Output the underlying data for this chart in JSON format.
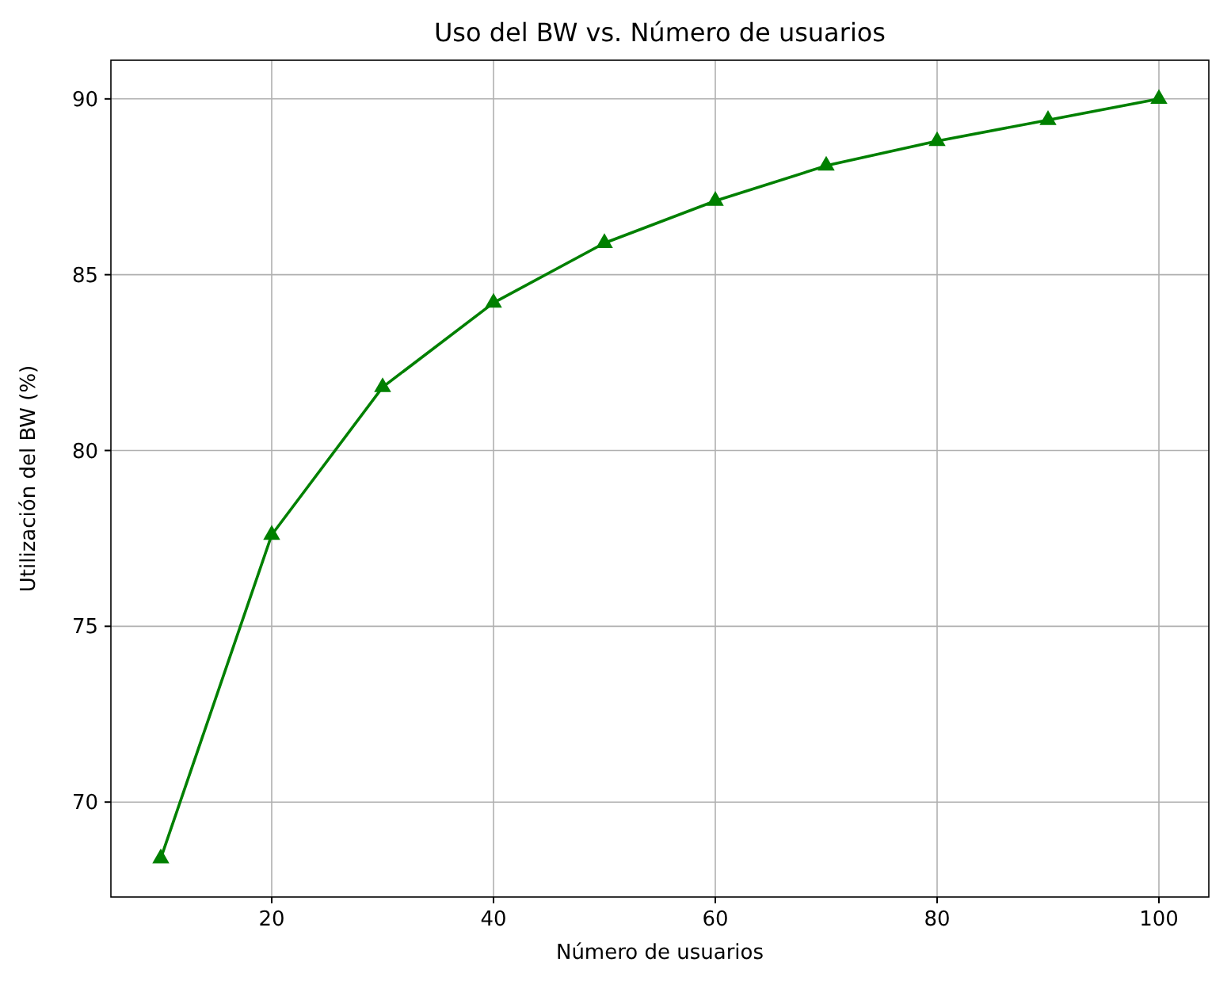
{
  "chart_data": {
    "type": "line",
    "title": "Uso del BW vs. Número de usuarios",
    "xlabel": "Número de usuarios",
    "ylabel": "Utilización del BW (%)",
    "x": [
      10,
      20,
      30,
      40,
      50,
      60,
      70,
      80,
      90,
      100
    ],
    "series": [
      {
        "color": "#008000",
        "values": [
          68.4,
          77.6,
          81.8,
          84.2,
          85.9,
          87.1,
          88.1,
          88.8,
          89.4,
          90.0
        ]
      }
    ],
    "xlim": [
      5.5,
      104.5
    ],
    "xticks": [
      20,
      40,
      60,
      80,
      100
    ],
    "ylim": [
      67.3,
      91.1
    ],
    "yticks": [
      70,
      75,
      80,
      85,
      90
    ],
    "grid": true,
    "marker": "triangle",
    "line_style": "solid"
  }
}
